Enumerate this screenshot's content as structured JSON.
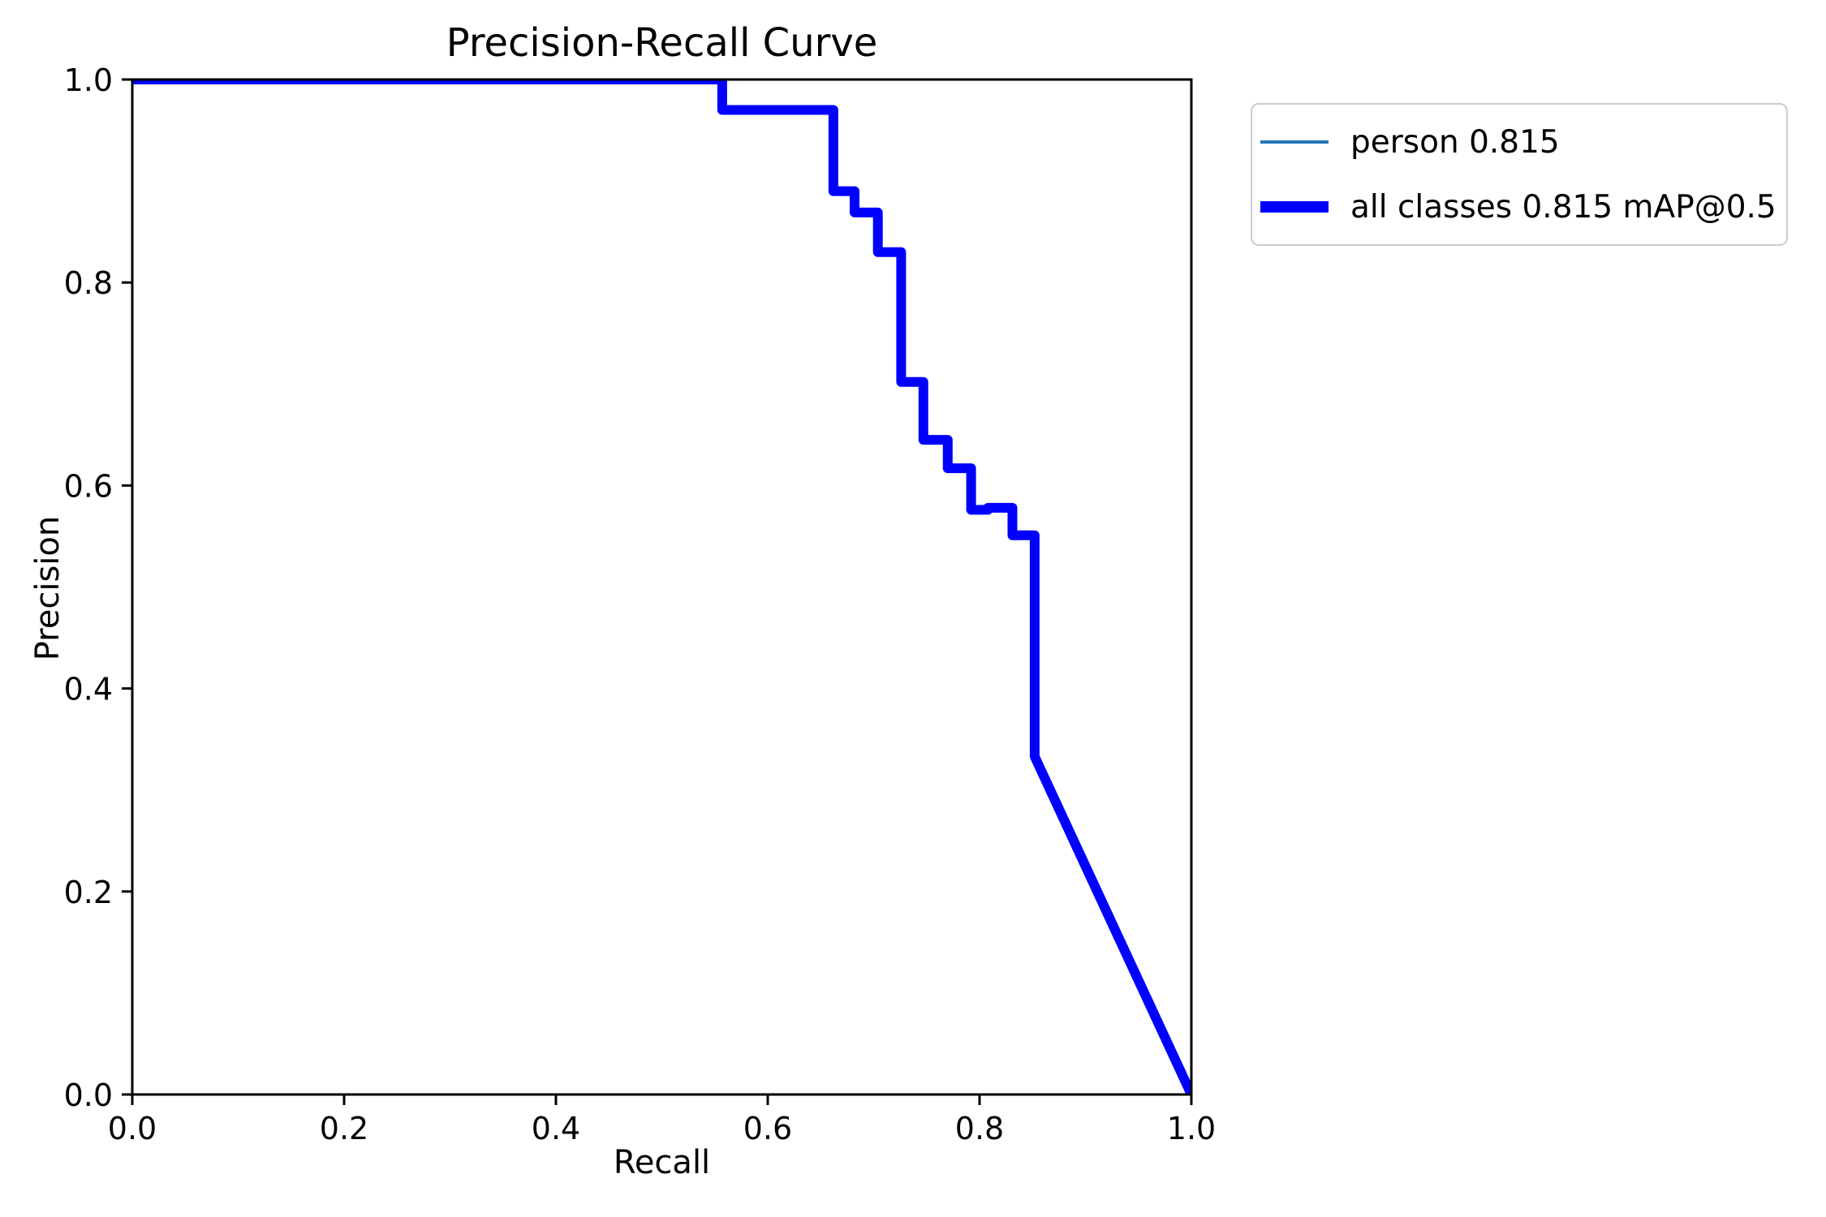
{
  "chart_data": {
    "type": "line",
    "title": "Precision-Recall Curve",
    "xlabel": "Recall",
    "ylabel": "Precision",
    "xlim": [
      0.0,
      1.0
    ],
    "ylim": [
      0.0,
      1.0
    ],
    "x_ticks": [
      "0.0",
      "0.2",
      "0.4",
      "0.6",
      "0.8",
      "1.0"
    ],
    "y_ticks": [
      "0.0",
      "0.2",
      "0.4",
      "0.6",
      "0.8",
      "1.0"
    ],
    "grid": false,
    "legend": {
      "position": "outside-upper-right"
    },
    "series": [
      {
        "name": "person",
        "label": "person 0.815",
        "color": "#1f77b4",
        "style": "thin",
        "points": [
          [
            0.0,
            1.0
          ],
          [
            0.557,
            1.0
          ],
          [
            0.557,
            0.97
          ],
          [
            0.662,
            0.97
          ],
          [
            0.662,
            0.89
          ],
          [
            0.682,
            0.89
          ],
          [
            0.682,
            0.869
          ],
          [
            0.704,
            0.869
          ],
          [
            0.704,
            0.83
          ],
          [
            0.726,
            0.83
          ],
          [
            0.726,
            0.702
          ],
          [
            0.747,
            0.702
          ],
          [
            0.747,
            0.645
          ],
          [
            0.77,
            0.645
          ],
          [
            0.77,
            0.617
          ],
          [
            0.792,
            0.617
          ],
          [
            0.792,
            0.576
          ],
          [
            0.808,
            0.576
          ],
          [
            0.808,
            0.578
          ],
          [
            0.831,
            0.578
          ],
          [
            0.831,
            0.551
          ],
          [
            0.852,
            0.551
          ],
          [
            0.852,
            0.333
          ],
          [
            1.0,
            0.0
          ]
        ]
      },
      {
        "name": "all-classes",
        "label": "all classes 0.815 mAP@0.5",
        "color": "#0000ff",
        "style": "thick",
        "points": [
          [
            0.0,
            1.0
          ],
          [
            0.557,
            1.0
          ],
          [
            0.557,
            0.97
          ],
          [
            0.662,
            0.97
          ],
          [
            0.662,
            0.89
          ],
          [
            0.682,
            0.89
          ],
          [
            0.682,
            0.869
          ],
          [
            0.704,
            0.869
          ],
          [
            0.704,
            0.83
          ],
          [
            0.726,
            0.83
          ],
          [
            0.726,
            0.702
          ],
          [
            0.747,
            0.702
          ],
          [
            0.747,
            0.645
          ],
          [
            0.77,
            0.645
          ],
          [
            0.77,
            0.617
          ],
          [
            0.792,
            0.617
          ],
          [
            0.792,
            0.576
          ],
          [
            0.808,
            0.576
          ],
          [
            0.808,
            0.578
          ],
          [
            0.831,
            0.578
          ],
          [
            0.831,
            0.551
          ],
          [
            0.852,
            0.551
          ],
          [
            0.852,
            0.333
          ],
          [
            1.0,
            0.0
          ]
        ]
      }
    ],
    "colors": {
      "axes": "#000000",
      "background": "#ffffff",
      "legend_border": "#cccccc"
    }
  }
}
